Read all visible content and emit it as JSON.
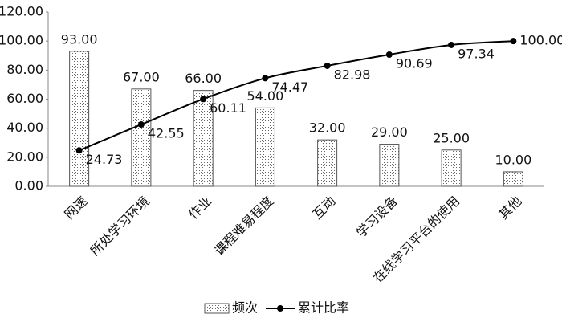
{
  "chart_data": {
    "type": "bar",
    "categories": [
      "网速",
      "所处学习环境",
      "作业",
      "课程难易程度",
      "互动",
      "学习设备",
      "在线学习平台的使用",
      "其他"
    ],
    "series": [
      {
        "name": "频次",
        "type": "bar",
        "color": "#555555",
        "values": [
          93,
          67,
          66,
          54,
          32,
          29,
          25,
          10
        ],
        "value_labels": [
          "93.00",
          "67.00",
          "66.00",
          "54.00",
          "32.00",
          "29.00",
          "25.00",
          "10.00"
        ]
      },
      {
        "name": "累计比率",
        "type": "line",
        "color": "#000000",
        "values": [
          24.73,
          42.55,
          60.11,
          74.47,
          82.98,
          90.69,
          97.34,
          100.0
        ],
        "value_labels": [
          "24.73",
          "42.55",
          "60.11",
          "74.47",
          "82.98",
          "90.69",
          "97.34",
          "100.00"
        ]
      }
    ],
    "ylim": [
      0,
      120
    ],
    "yticks": [
      {
        "value": 0,
        "label": "0.00"
      },
      {
        "value": 20,
        "label": "20.00"
      },
      {
        "value": 40,
        "label": "40.00"
      },
      {
        "value": 60,
        "label": "60.00"
      },
      {
        "value": 80,
        "label": "80.00"
      },
      {
        "value": 100,
        "label": "100.00"
      },
      {
        "value": 120,
        "label": "120.00"
      }
    ],
    "legend": "bottom"
  }
}
